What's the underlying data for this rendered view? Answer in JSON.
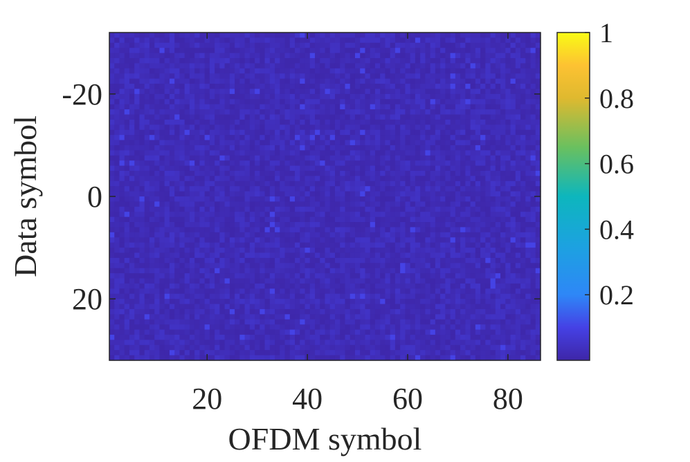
{
  "chart_data": {
    "type": "heatmap",
    "title": "",
    "xlabel": "OFDM symbol",
    "ylabel": "Data symbol",
    "x_range": [
      1,
      86
    ],
    "y_range": [
      -32,
      32
    ],
    "x_ticks": [
      20,
      40,
      60,
      80
    ],
    "x_tick_labels": [
      "20",
      "40",
      "60",
      "80"
    ],
    "y_ticks": [
      -20,
      0,
      20
    ],
    "y_tick_labels": [
      "-20",
      "0",
      "20"
    ],
    "y_direction": "reversed",
    "grid": false,
    "colormap": "parula",
    "colorbar": {
      "range": [
        0,
        1
      ],
      "ticks": [
        0.2,
        0.4,
        0.6,
        0.8,
        1
      ],
      "tick_labels": [
        "0.2",
        "0.4",
        "0.6",
        "0.8",
        "1"
      ],
      "placement": "right"
    },
    "cell_value_range": [
      0.0,
      0.15
    ],
    "cell_value_typical": 0.03,
    "colors": {
      "low": "#3e26a8",
      "high": "#f9fb15",
      "axis": "#262626"
    }
  }
}
